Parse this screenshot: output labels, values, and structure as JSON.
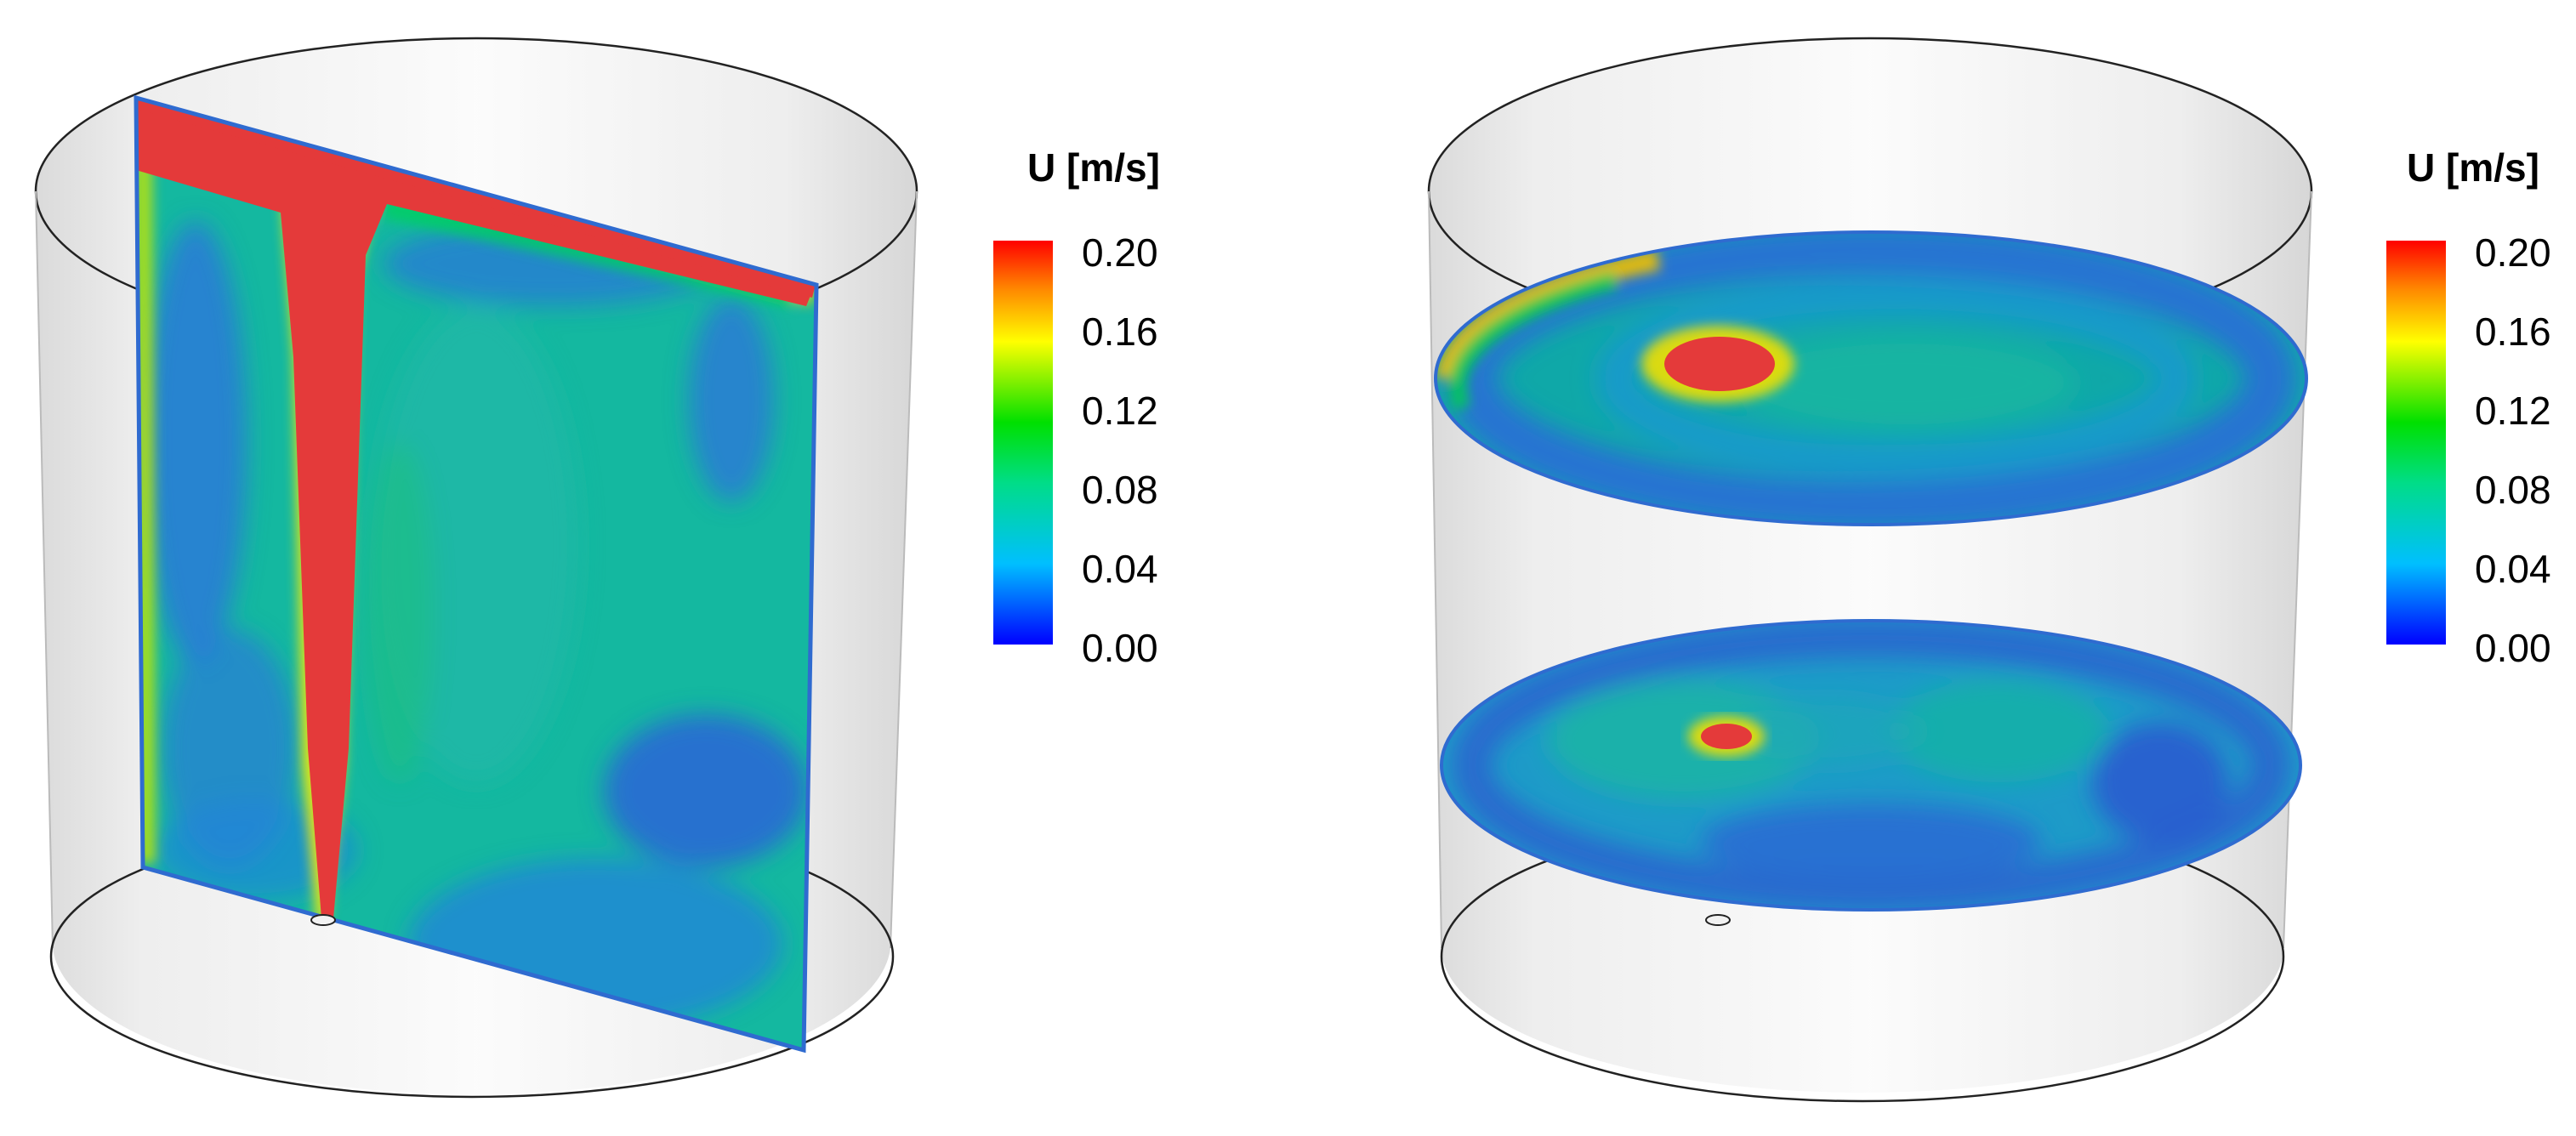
{
  "legends": [
    {
      "title": "U [m/s]",
      "ticks": [
        "0.20",
        "0.16",
        "0.12",
        "0.08",
        "0.04",
        "0.00"
      ]
    },
    {
      "title": "U [m/s]",
      "ticks": [
        "0.20",
        "0.16",
        "0.12",
        "0.08",
        "0.04",
        "0.00"
      ]
    }
  ],
  "colormap": {
    "stops": [
      "#0000ff",
      "#00bfff",
      "#00dd88",
      "#00e000",
      "#ffff00",
      "#ff8800",
      "#ff0000"
    ],
    "min": 0.0,
    "max": 0.2
  },
  "panels": [
    {
      "view": "vertical-section"
    },
    {
      "view": "horizontal-sections"
    }
  ]
}
